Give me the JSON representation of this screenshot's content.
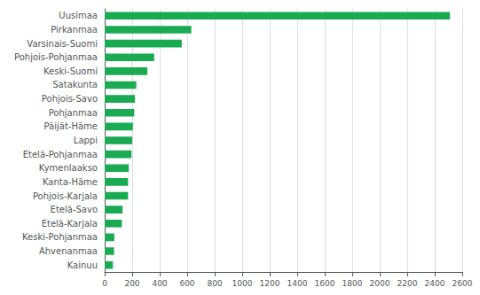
{
  "chart_data": {
    "type": "bar",
    "orientation": "horizontal",
    "categories": [
      "Uusimaa",
      "Pirkanmaa",
      "Varsinais-Suomi",
      "Pohjois-Pohjanmaa",
      "Keski-Suomi",
      "Satakunta",
      "Pohjois-Savo",
      "Pohjanmaa",
      "Päijät-Häme",
      "Lappi",
      "Etelä-Pohjanmaa",
      "Kymenlaakso",
      "Kanta-Häme",
      "Pohjois-Karjala",
      "Etelä-Savo",
      "Etelä-Karjala",
      "Keski-Pohjanmaa",
      "Ahvenanmaa",
      "Kainuu"
    ],
    "values": [
      2510,
      630,
      560,
      360,
      310,
      230,
      220,
      215,
      205,
      200,
      195,
      175,
      170,
      170,
      130,
      125,
      70,
      68,
      60
    ],
    "color": "#1aab52",
    "xlim": [
      0,
      2600
    ],
    "xticks": [
      0,
      200,
      400,
      600,
      800,
      1000,
      1200,
      1400,
      1600,
      1800,
      2000,
      2200,
      2400,
      2600
    ],
    "grid": true
  }
}
